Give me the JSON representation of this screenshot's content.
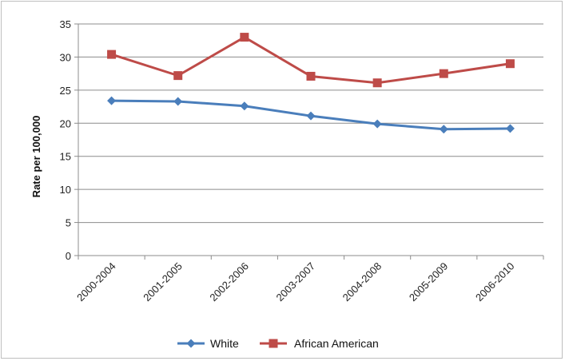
{
  "chart_data": {
    "type": "line",
    "categories": [
      "2000-2004",
      "2001-2005",
      "2002-2006",
      "2003-2007",
      "2004-2008",
      "2005-2009",
      "2006-2010"
    ],
    "series": [
      {
        "name": "White",
        "values": [
          23.4,
          23.3,
          22.6,
          21.1,
          19.9,
          19.1,
          19.2
        ],
        "color": "#4a7ebb",
        "marker": "diamond"
      },
      {
        "name": "African American",
        "values": [
          30.4,
          27.2,
          33.0,
          27.1,
          26.1,
          27.5,
          29.0
        ],
        "color": "#be4b48",
        "marker": "square"
      }
    ],
    "ylabel": "Rate per 100,000",
    "xlabel": "",
    "ylim": [
      0,
      35
    ],
    "yticks": [
      0,
      5,
      10,
      15,
      20,
      25,
      30,
      35
    ],
    "grid": "horizontal",
    "legend_position": "bottom"
  }
}
